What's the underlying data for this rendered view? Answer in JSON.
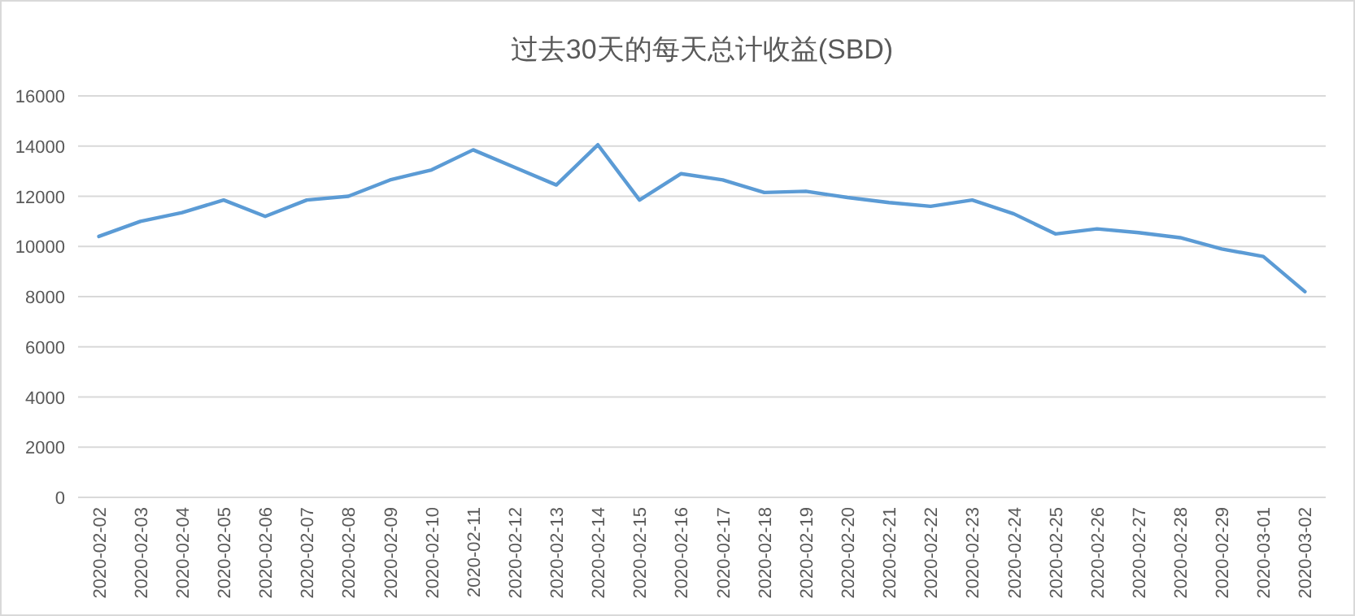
{
  "chart_data": {
    "type": "line",
    "title": "过去30天的每天总计收益(SBD)",
    "categories": [
      "2020-02-02",
      "2020-02-03",
      "2020-02-04",
      "2020-02-05",
      "2020-02-06",
      "2020-02-07",
      "2020-02-08",
      "2020-02-09",
      "2020-02-10",
      "2020-02-11",
      "2020-02-12",
      "2020-02-13",
      "2020-02-14",
      "2020-02-15",
      "2020-02-16",
      "2020-02-17",
      "2020-02-18",
      "2020-02-19",
      "2020-02-20",
      "2020-02-21",
      "2020-02-22",
      "2020-02-23",
      "2020-02-24",
      "2020-02-25",
      "2020-02-26",
      "2020-02-27",
      "2020-02-28",
      "2020-02-29",
      "2020-03-01",
      "2020-03-02"
    ],
    "series": [
      {
        "color": "#5b9bd5",
        "values": [
          10400,
          11000,
          11350,
          11850,
          11200,
          11850,
          12000,
          12650,
          13050,
          13850,
          13150,
          12450,
          14050,
          11850,
          12900,
          12650,
          12150,
          12200,
          11950,
          11750,
          11600,
          11850,
          11300,
          10500,
          10700,
          10550,
          10350,
          9900,
          9600,
          8200
        ]
      }
    ],
    "ylim": [
      0,
      16000
    ],
    "yticks": [
      0,
      2000,
      4000,
      6000,
      8000,
      10000,
      12000,
      14000,
      16000
    ],
    "grid": "y",
    "marker": "none",
    "line_style": "solid"
  }
}
